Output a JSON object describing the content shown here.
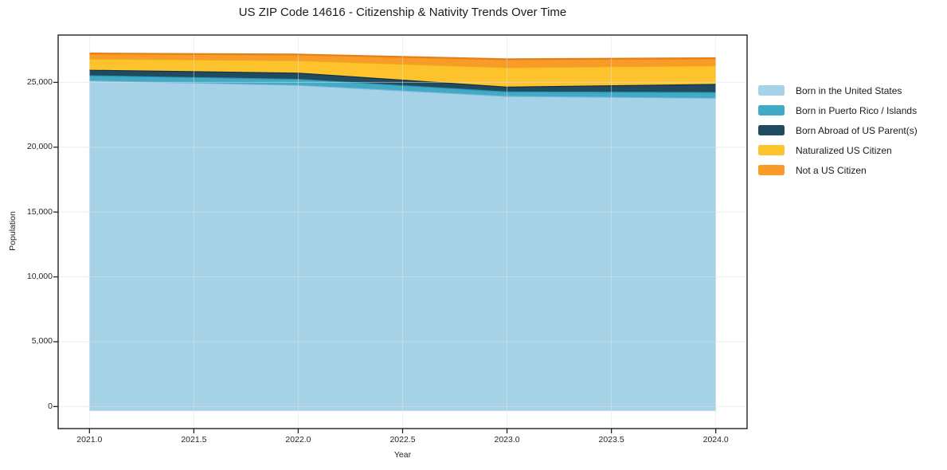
{
  "figure": {
    "title": "US ZIP Code 14616 - Citizenship & Nativity Trends Over Time"
  },
  "chart_data": {
    "type": "area",
    "stacked": true,
    "title": "US ZIP Code 14616 - Citizenship & Nativity Trends Over Time",
    "xlabel": "Year",
    "ylabel": "Population",
    "x": [
      2021,
      2022,
      2023,
      2024
    ],
    "series": [
      {
        "name": "Born in the United States",
        "values": [
          25150,
          24800,
          23950,
          23800
        ],
        "fill": "#A6D2E8",
        "line": "#7FB8D9"
      },
      {
        "name": "Born in Puerto Rico / Islands",
        "values": [
          400,
          470,
          350,
          460
        ],
        "fill": "#41AAC5",
        "line": "#2B91AC"
      },
      {
        "name": "Born Abroad of US Parent(s)",
        "values": [
          420,
          480,
          370,
          620
        ],
        "fill": "#1F4A5F",
        "line": "#132F3D"
      },
      {
        "name": "Naturalized US Citizen",
        "values": [
          870,
          950,
          1500,
          1430
        ],
        "fill": "#FCC32D",
        "line": "#EFA91C"
      },
      {
        "name": "Not a US Citizen",
        "values": [
          390,
          450,
          610,
          550
        ],
        "fill": "#F89B27",
        "line": "#E67E15"
      }
    ],
    "totals": [
      27230,
      27150,
      26780,
      26860
    ],
    "xlim": [
      2020.85,
      2024.15
    ],
    "ylim": [
      -1700,
      28650
    ],
    "xticks": {
      "values": [
        2021.0,
        2021.5,
        2022.0,
        2022.5,
        2023.0,
        2023.5,
        2024.0
      ],
      "labels": [
        "2021.0",
        "2021.5",
        "2022.0",
        "2022.5",
        "2023.0",
        "2023.5",
        "2024.0"
      ]
    },
    "yticks": {
      "values": [
        0,
        5000,
        10000,
        15000,
        20000,
        25000
      ],
      "labels": [
        "0",
        "5,000",
        "10,000",
        "15,000",
        "20,000",
        "25,000"
      ]
    },
    "grid": true,
    "legend_position": "right",
    "grid_color": "#E0E0E0",
    "spine_color": "#222222",
    "tick_color": "#222222"
  }
}
